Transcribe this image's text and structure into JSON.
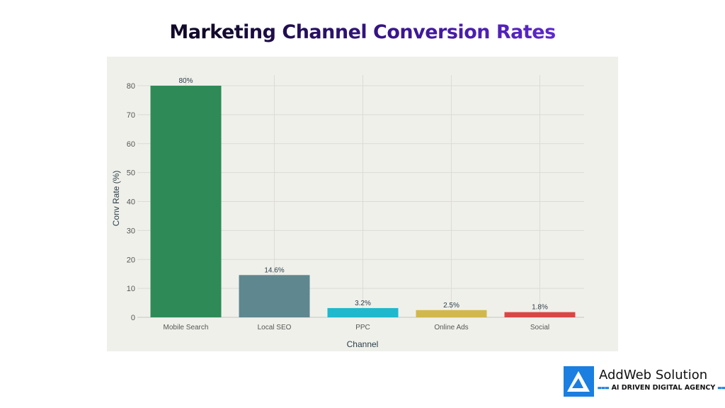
{
  "chart_data": {
    "type": "bar",
    "title": "Marketing Channel Conversion Rates",
    "xlabel": "Channel",
    "ylabel": "Conv Rate (%)",
    "categories": [
      "Mobile Search",
      "Local SEO",
      "PPC",
      "Online Ads",
      "Social"
    ],
    "values": [
      80,
      14.6,
      3.2,
      2.5,
      1.8
    ],
    "data_labels": [
      "80%",
      "14.6%",
      "3.2%",
      "2.5%",
      "1.8%"
    ],
    "colors": [
      "#2e8b57",
      "#5e8790",
      "#1fb8cc",
      "#d1b84c",
      "#d94646"
    ],
    "yticks": [
      0,
      10,
      20,
      30,
      40,
      50,
      60,
      70,
      80
    ],
    "ylim": [
      0,
      80
    ],
    "grid": true,
    "background": "#f0f0eb"
  },
  "logo": {
    "name": "AddWeb Solution",
    "tagline": "AI DRIVEN DIGITAL AGENCY",
    "color": "#1a7fe0"
  }
}
